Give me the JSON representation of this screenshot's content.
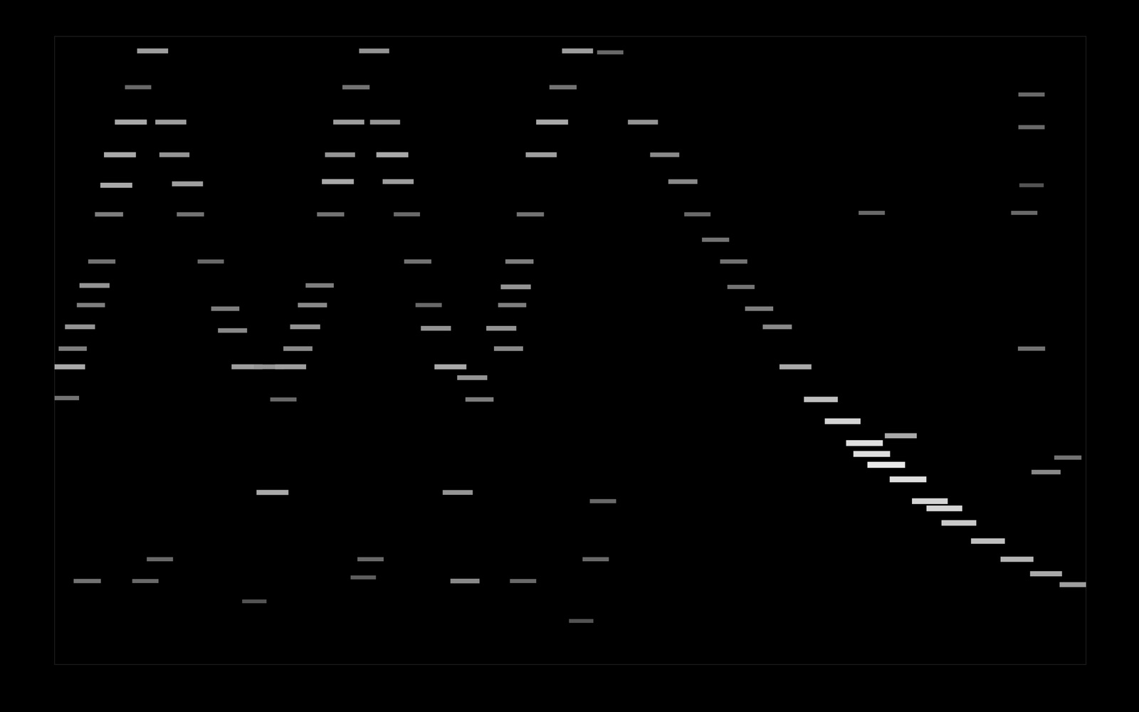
{
  "chart_data": {
    "type": "heatmap",
    "xlim": [
      0,
      1420
    ],
    "ylim": [
      0,
      865
    ],
    "zlim": [
      0,
      1
    ],
    "tick_labels": false,
    "grid": false,
    "cells": {
      "x": [
        20,
        25,
        35,
        50,
        55,
        65,
        75,
        85,
        90,
        105,
        115,
        135,
        160,
        165,
        183,
        187,
        215,
        235,
        245,
        265,
        295,
        300,
        45,
        125,
        145,
        15,
        325,
        335,
        345,
        355,
        365,
        380,
        390,
        393,
        405,
        415,
        440,
        455,
        465,
        473,
        485,
        500,
        515,
        525,
        315,
        435,
        425,
        275,
        545,
        575,
        585,
        615,
        625,
        630,
        635,
        640,
        655,
        670,
        685,
        700,
        720,
        765,
        810,
        840,
        865,
        885,
        910,
        935,
        945,
        970,
        995,
        1020,
        1055,
        1085,
        1115,
        1145,
        1175,
        1205,
        1245,
        1285,
        1325,
        1365,
        1405,
        555,
        565,
        645,
        745,
        755,
        725,
        1365,
        1395,
        1345,
        1345,
        1345,
        1335,
        1125,
        1345,
        1125,
        1225,
        1165
      ],
      "y": [
        410,
        435,
        465,
        495,
        522,
        555,
        620,
        660,
        702,
        747,
        795,
        845,
        747,
        702,
        662,
        620,
        555,
        490,
        460,
        410,
        410,
        237,
        115,
        115,
        145,
        367,
        410,
        435,
        465,
        495,
        522,
        620,
        665,
        702,
        747,
        795,
        845,
        747,
        702,
        665,
        620,
        555,
        495,
        463,
        365,
        145,
        120,
        87,
        410,
        395,
        365,
        463,
        435,
        495,
        520,
        555,
        620,
        702,
        747,
        795,
        845,
        843,
        747,
        702,
        665,
        620,
        585,
        555,
        520,
        490,
        465,
        410,
        365,
        335,
        305,
        275,
        255,
        225,
        195,
        170,
        145,
        125,
        110,
        237,
        115,
        115,
        145,
        225,
        60,
        265,
        285,
        435,
        785,
        740,
        622,
        622,
        660,
        290,
        215,
        315
      ],
      "intensity": [
        0.6,
        0.4,
        0.5,
        0.4,
        0.5,
        0.35,
        0.4,
        0.6,
        0.6,
        0.6,
        0.3,
        0.55,
        0.55,
        0.5,
        0.55,
        0.35,
        0.3,
        0.4,
        0.45,
        0.55,
        0.5,
        0.6,
        0.35,
        0.3,
        0.3,
        0.35,
        0.55,
        0.45,
        0.5,
        0.45,
        0.4,
        0.35,
        0.6,
        0.5,
        0.55,
        0.35,
        0.5,
        0.5,
        0.6,
        0.55,
        0.3,
        0.35,
        0.3,
        0.5,
        0.3,
        0.3,
        0.25,
        0.2,
        0.6,
        0.5,
        0.4,
        0.5,
        0.45,
        0.4,
        0.5,
        0.4,
        0.35,
        0.55,
        0.6,
        0.35,
        0.55,
        0.3,
        0.5,
        0.45,
        0.45,
        0.3,
        0.35,
        0.35,
        0.35,
        0.4,
        0.45,
        0.6,
        0.7,
        0.8,
        0.85,
        0.9,
        0.85,
        0.8,
        0.75,
        0.7,
        0.65,
        0.6,
        0.55,
        0.5,
        0.45,
        0.3,
        0.3,
        0.3,
        0.2,
        0.45,
        0.35,
        0.35,
        0.3,
        0.3,
        0.3,
        0.3,
        0.2,
        0.85,
        0.8,
        0.6
      ]
    }
  }
}
